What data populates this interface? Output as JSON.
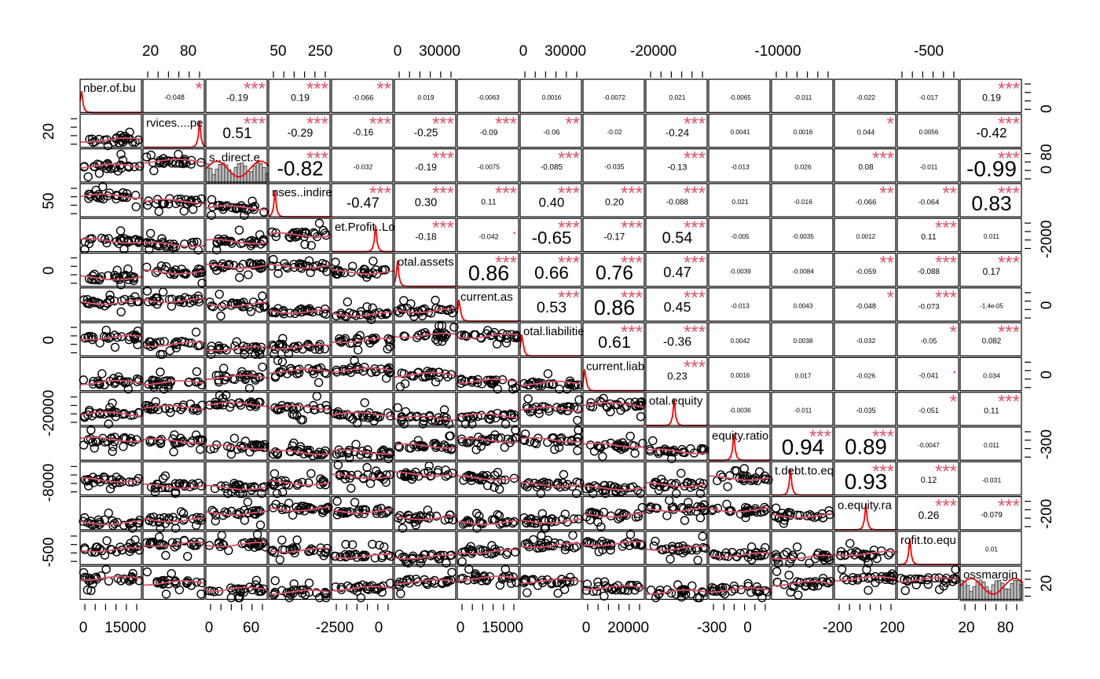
{
  "chart_data": {
    "type": "scatter-matrix",
    "panel_count": 15,
    "colors": {
      "frame": "#000000",
      "points": "#000000",
      "smooth": "#df536b",
      "density": "#ff0000",
      "stars": "#df536b",
      "hist": "#bebebe"
    },
    "variable_labels": [
      "nber.of.bu",
      "rvices....pe",
      "s..direct.e",
      "nses..indire",
      "et.Profit..Lo",
      "otal.assets",
      "current.as",
      "otal.liabilitie",
      "current.liab",
      "otal.equity",
      "equity.ratio",
      "t.debt.to.eq",
      "o.equity.ra",
      "rofit.to.equ",
      "ossmargin"
    ],
    "top_axis_labels": [
      {
        "col": 1,
        "labels": [
          [
            "20",
            0.12
          ],
          [
            "80",
            0.72
          ]
        ]
      },
      {
        "col": 3,
        "labels": [
          [
            "50",
            0.15
          ],
          [
            "250",
            0.82
          ]
        ]
      },
      {
        "col": 5,
        "labels": [
          [
            "0",
            0.05
          ],
          [
            "30000",
            0.72
          ]
        ]
      },
      {
        "col": 7,
        "labels": [
          [
            "0",
            0.05
          ],
          [
            "30000",
            0.72
          ]
        ]
      },
      {
        "col": 9,
        "labels": [
          [
            "-20000",
            0.12
          ]
        ]
      },
      {
        "col": 11,
        "labels": [
          [
            "-10000",
            0.1
          ]
        ]
      },
      {
        "col": 13,
        "labels": [
          [
            "-500",
            0.5
          ]
        ]
      }
    ],
    "bottom_axis_labels": [
      {
        "col": 0,
        "labels": [
          [
            "0",
            0.05
          ],
          [
            "15000",
            0.72
          ]
        ]
      },
      {
        "col": 2,
        "labels": [
          [
            "0",
            0.05
          ],
          [
            "60",
            0.72
          ]
        ]
      },
      {
        "col": 4,
        "labels": [
          [
            "-2500",
            0.05
          ],
          [
            "0",
            0.75
          ]
        ]
      },
      {
        "col": 6,
        "labels": [
          [
            "0",
            0.05
          ],
          [
            "15000",
            0.72
          ]
        ]
      },
      {
        "col": 8,
        "labels": [
          [
            "0",
            0.05
          ],
          [
            "20000",
            0.72
          ]
        ]
      },
      {
        "col": 10,
        "labels": [
          [
            "-300",
            0.05
          ],
          [
            "0",
            0.62
          ]
        ]
      },
      {
        "col": 12,
        "labels": [
          [
            "-200",
            0.05
          ],
          [
            "200",
            0.92
          ]
        ]
      },
      {
        "col": 14,
        "labels": [
          [
            "20",
            0.1
          ],
          [
            "80",
            0.72
          ]
        ]
      }
    ],
    "left_axis_labels": [
      {
        "row": 1,
        "labels": [
          [
            "20",
            0.2
          ]
        ]
      },
      {
        "row": 3,
        "labels": [
          [
            "50",
            0.2
          ]
        ]
      },
      {
        "row": 5,
        "labels": [
          [
            "0",
            0.2
          ]
        ]
      },
      {
        "row": 7,
        "labels": [
          [
            "0",
            0.2
          ]
        ]
      },
      {
        "row": 9,
        "labels": [
          [
            "-20000",
            0.3
          ]
        ]
      },
      {
        "row": 11,
        "labels": [
          [
            "-8000",
            0.3
          ]
        ]
      },
      {
        "row": 13,
        "labels": [
          [
            "-500",
            0.3
          ]
        ]
      }
    ],
    "right_axis_labels": [
      {
        "row": 0,
        "labels": [
          [
            "0",
            0.85
          ]
        ]
      },
      {
        "row": 2,
        "labels": [
          [
            "0",
            0.6
          ],
          [
            "80",
            0.1
          ]
        ]
      },
      {
        "row": 4,
        "labels": [
          [
            "-2000",
            0.6
          ]
        ]
      },
      {
        "row": 6,
        "labels": [
          [
            "0",
            0.5
          ]
        ]
      },
      {
        "row": 8,
        "labels": [
          [
            "0",
            0.5
          ]
        ]
      },
      {
        "row": 10,
        "labels": [
          [
            "-300",
            0.5
          ]
        ]
      },
      {
        "row": 12,
        "labels": [
          [
            "-200",
            0.5
          ]
        ]
      },
      {
        "row": 14,
        "labels": [
          [
            "20",
            0.5
          ]
        ]
      }
    ],
    "correlations": [
      {
        "r": 0,
        "c": 1,
        "value": "-0.048",
        "stars": "*"
      },
      {
        "r": 0,
        "c": 2,
        "value": "-0.19",
        "stars": "***"
      },
      {
        "r": 0,
        "c": 3,
        "value": "0.19",
        "stars": "***"
      },
      {
        "r": 0,
        "c": 4,
        "value": "-0.066",
        "stars": "**"
      },
      {
        "r": 0,
        "c": 5,
        "value": "0.019",
        "stars": ""
      },
      {
        "r": 0,
        "c": 6,
        "value": "-0.0063",
        "stars": ""
      },
      {
        "r": 0,
        "c": 7,
        "value": "0.0016",
        "stars": ""
      },
      {
        "r": 0,
        "c": 8,
        "value": "-0.0072",
        "stars": ""
      },
      {
        "r": 0,
        "c": 9,
        "value": "0.021",
        "stars": ""
      },
      {
        "r": 0,
        "c": 10,
        "value": "-0.0065",
        "stars": ""
      },
      {
        "r": 0,
        "c": 11,
        "value": "-0.011",
        "stars": ""
      },
      {
        "r": 0,
        "c": 12,
        "value": "-0.022",
        "stars": ""
      },
      {
        "r": 0,
        "c": 13,
        "value": "-0.017",
        "stars": ""
      },
      {
        "r": 0,
        "c": 14,
        "value": "0.19",
        "stars": "***"
      },
      {
        "r": 1,
        "c": 2,
        "value": "0.51",
        "stars": "***"
      },
      {
        "r": 1,
        "c": 3,
        "value": "-0.29",
        "stars": "***"
      },
      {
        "r": 1,
        "c": 4,
        "value": "-0.16",
        "stars": "***"
      },
      {
        "r": 1,
        "c": 5,
        "value": "-0.25",
        "stars": "***"
      },
      {
        "r": 1,
        "c": 6,
        "value": "-0.09",
        "stars": "***"
      },
      {
        "r": 1,
        "c": 7,
        "value": "-0.06",
        "stars": "**"
      },
      {
        "r": 1,
        "c": 8,
        "value": "-0.02",
        "stars": ""
      },
      {
        "r": 1,
        "c": 9,
        "value": "-0.24",
        "stars": "***"
      },
      {
        "r": 1,
        "c": 10,
        "value": "0.0041",
        "stars": ""
      },
      {
        "r": 1,
        "c": 11,
        "value": "0.0016",
        "stars": ""
      },
      {
        "r": 1,
        "c": 12,
        "value": "0.044",
        "stars": "*"
      },
      {
        "r": 1,
        "c": 13,
        "value": "0.0056",
        "stars": ""
      },
      {
        "r": 1,
        "c": 14,
        "value": "-0.42",
        "stars": "***"
      },
      {
        "r": 2,
        "c": 3,
        "value": "-0.82",
        "stars": "***"
      },
      {
        "r": 2,
        "c": 4,
        "value": "-0.032",
        "stars": ""
      },
      {
        "r": 2,
        "c": 5,
        "value": "-0.19",
        "stars": "***"
      },
      {
        "r": 2,
        "c": 6,
        "value": "-0.0075",
        "stars": ""
      },
      {
        "r": 2,
        "c": 7,
        "value": "-0.085",
        "stars": "***"
      },
      {
        "r": 2,
        "c": 8,
        "value": "-0.035",
        "stars": ""
      },
      {
        "r": 2,
        "c": 9,
        "value": "-0.13",
        "stars": "***"
      },
      {
        "r": 2,
        "c": 10,
        "value": "-0.013",
        "stars": ""
      },
      {
        "r": 2,
        "c": 11,
        "value": "0.026",
        "stars": ""
      },
      {
        "r": 2,
        "c": 12,
        "value": "0.08",
        "stars": "***"
      },
      {
        "r": 2,
        "c": 13,
        "value": "-0.011",
        "stars": ""
      },
      {
        "r": 2,
        "c": 14,
        "value": "-0.99",
        "stars": "***"
      },
      {
        "r": 3,
        "c": 4,
        "value": "-0.47",
        "stars": "***"
      },
      {
        "r": 3,
        "c": 5,
        "value": "0.30",
        "stars": "***"
      },
      {
        "r": 3,
        "c": 6,
        "value": "0.11",
        "stars": "***"
      },
      {
        "r": 3,
        "c": 7,
        "value": "0.40",
        "stars": "***"
      },
      {
        "r": 3,
        "c": 8,
        "value": "0.20",
        "stars": "***"
      },
      {
        "r": 3,
        "c": 9,
        "value": "-0.088",
        "stars": "***"
      },
      {
        "r": 3,
        "c": 10,
        "value": "0.021",
        "stars": ""
      },
      {
        "r": 3,
        "c": 11,
        "value": "-0.016",
        "stars": ""
      },
      {
        "r": 3,
        "c": 12,
        "value": "-0.066",
        "stars": "**"
      },
      {
        "r": 3,
        "c": 13,
        "value": "-0.064",
        "stars": "**"
      },
      {
        "r": 3,
        "c": 14,
        "value": "0.83",
        "stars": "***"
      },
      {
        "r": 4,
        "c": 5,
        "value": "-0.18",
        "stars": "***"
      },
      {
        "r": 4,
        "c": 6,
        "value": "-0.042",
        "stars": "."
      },
      {
        "r": 4,
        "c": 7,
        "value": "-0.65",
        "stars": "***"
      },
      {
        "r": 4,
        "c": 8,
        "value": "-0.17",
        "stars": "***"
      },
      {
        "r": 4,
        "c": 9,
        "value": "0.54",
        "stars": "***"
      },
      {
        "r": 4,
        "c": 10,
        "value": "-0.005",
        "stars": ""
      },
      {
        "r": 4,
        "c": 11,
        "value": "-0.0035",
        "stars": ""
      },
      {
        "r": 4,
        "c": 12,
        "value": "0.0012",
        "stars": ""
      },
      {
        "r": 4,
        "c": 13,
        "value": "0.11",
        "stars": "***"
      },
      {
        "r": 4,
        "c": 14,
        "value": "0.011",
        "stars": ""
      },
      {
        "r": 5,
        "c": 6,
        "value": "0.86",
        "stars": "***"
      },
      {
        "r": 5,
        "c": 7,
        "value": "0.66",
        "stars": "***"
      },
      {
        "r": 5,
        "c": 8,
        "value": "0.76",
        "stars": "***"
      },
      {
        "r": 5,
        "c": 9,
        "value": "0.47",
        "stars": "***"
      },
      {
        "r": 5,
        "c": 10,
        "value": "-0.0039",
        "stars": ""
      },
      {
        "r": 5,
        "c": 11,
        "value": "-0.0084",
        "stars": ""
      },
      {
        "r": 5,
        "c": 12,
        "value": "-0.059",
        "stars": "**"
      },
      {
        "r": 5,
        "c": 13,
        "value": "-0.088",
        "stars": "***"
      },
      {
        "r": 5,
        "c": 14,
        "value": "0.17",
        "stars": "***"
      },
      {
        "r": 6,
        "c": 7,
        "value": "0.53",
        "stars": "***"
      },
      {
        "r": 6,
        "c": 8,
        "value": "0.86",
        "stars": "***"
      },
      {
        "r": 6,
        "c": 9,
        "value": "0.45",
        "stars": "***"
      },
      {
        "r": 6,
        "c": 10,
        "value": "-0.013",
        "stars": ""
      },
      {
        "r": 6,
        "c": 11,
        "value": "0.0043",
        "stars": ""
      },
      {
        "r": 6,
        "c": 12,
        "value": "-0.048",
        "stars": "*"
      },
      {
        "r": 6,
        "c": 13,
        "value": "-0.073",
        "stars": "***"
      },
      {
        "r": 6,
        "c": 14,
        "value": "-1.4e-05",
        "stars": ""
      },
      {
        "r": 7,
        "c": 8,
        "value": "0.61",
        "stars": "***"
      },
      {
        "r": 7,
        "c": 9,
        "value": "-0.36",
        "stars": "***"
      },
      {
        "r": 7,
        "c": 10,
        "value": "0.0042",
        "stars": ""
      },
      {
        "r": 7,
        "c": 11,
        "value": "0.0038",
        "stars": ""
      },
      {
        "r": 7,
        "c": 12,
        "value": "-0.032",
        "stars": ""
      },
      {
        "r": 7,
        "c": 13,
        "value": "-0.05",
        "stars": "*"
      },
      {
        "r": 7,
        "c": 14,
        "value": "0.082",
        "stars": "***"
      },
      {
        "r": 8,
        "c": 9,
        "value": "0.23",
        "stars": "***"
      },
      {
        "r": 8,
        "c": 10,
        "value": "0.0016",
        "stars": ""
      },
      {
        "r": 8,
        "c": 11,
        "value": "0.017",
        "stars": ""
      },
      {
        "r": 8,
        "c": 12,
        "value": "-0.026",
        "stars": ""
      },
      {
        "r": 8,
        "c": 13,
        "value": "-0.041",
        "stars": "."
      },
      {
        "r": 8,
        "c": 14,
        "value": "0.034",
        "stars": ""
      },
      {
        "r": 9,
        "c": 10,
        "value": "-0.0036",
        "stars": ""
      },
      {
        "r": 9,
        "c": 11,
        "value": "-0.011",
        "stars": ""
      },
      {
        "r": 9,
        "c": 12,
        "value": "-0.035",
        "stars": ""
      },
      {
        "r": 9,
        "c": 13,
        "value": "-0.051",
        "stars": "*"
      },
      {
        "r": 9,
        "c": 14,
        "value": "0.11",
        "stars": "***"
      },
      {
        "r": 10,
        "c": 11,
        "value": "0.94",
        "stars": "***"
      },
      {
        "r": 10,
        "c": 12,
        "value": "0.89",
        "stars": "***"
      },
      {
        "r": 10,
        "c": 13,
        "value": "-0.0047",
        "stars": ""
      },
      {
        "r": 10,
        "c": 14,
        "value": "0.011",
        "stars": ""
      },
      {
        "r": 11,
        "c": 12,
        "value": "0.93",
        "stars": "***"
      },
      {
        "r": 11,
        "c": 13,
        "value": "0.12",
        "stars": "***"
      },
      {
        "r": 11,
        "c": 14,
        "value": "-0.031",
        "stars": ""
      },
      {
        "r": 12,
        "c": 13,
        "value": "0.26",
        "stars": "***"
      },
      {
        "r": 12,
        "c": 14,
        "value": "-0.079",
        "stars": "***"
      },
      {
        "r": 13,
        "c": 14,
        "value": "0.01",
        "stars": ""
      }
    ]
  }
}
